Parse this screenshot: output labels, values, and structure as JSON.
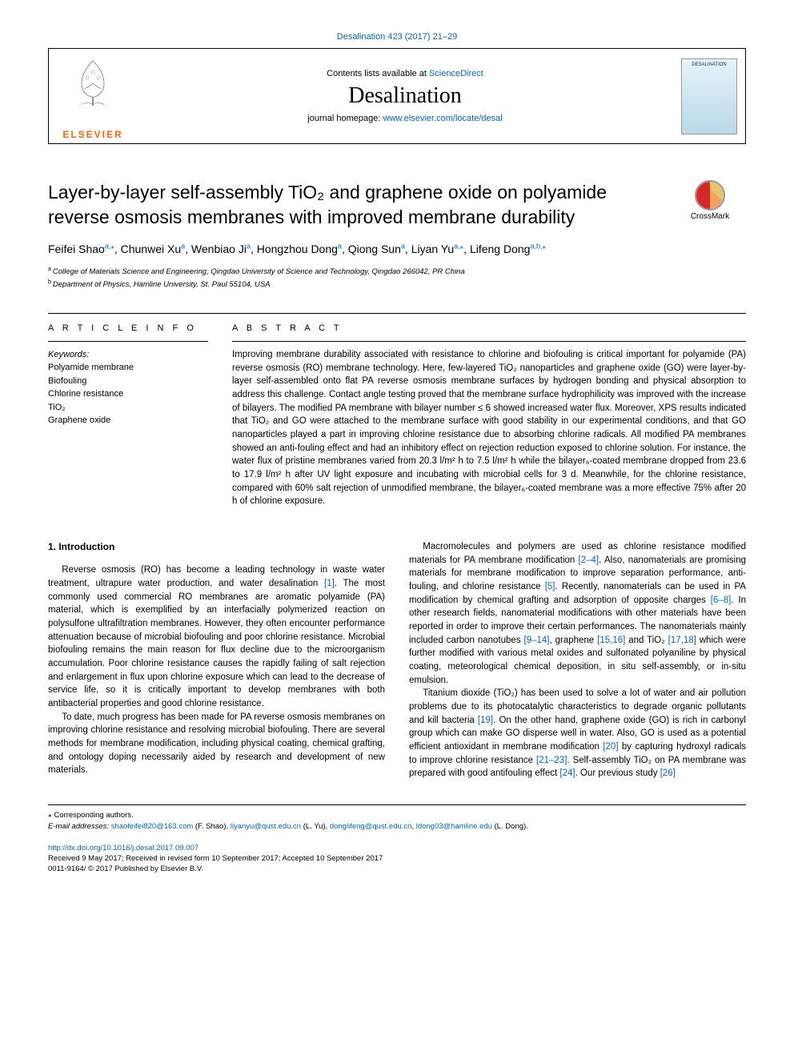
{
  "top_citation": "Desalination 423 (2017) 21–29",
  "header": {
    "contents_pre": "Contents lists available at ",
    "contents_link": "ScienceDirect",
    "journal": "Desalination",
    "homepage_pre": "journal homepage: ",
    "homepage_url": "www.elsevier.com/locate/desal",
    "publisher": "ELSEVIER",
    "cover_label": "DESALINATION"
  },
  "crossmark_label": "CrossMark",
  "title": "Layer-by-layer self-assembly TiO₂ and graphene oxide on polyamide reverse osmosis membranes with improved membrane durability",
  "authors_html": "Feifei Shao<sup>a,</sup>*, Chunwei Xu<sup>a</sup>, Wenbiao Ji<sup>a</sup>, Hongzhou Dong<sup>a</sup>, Qiong Sun<sup>a</sup>, Liyan Yu<sup>a,</sup>*, Lifeng Dong<sup>a,b,</sup>*",
  "authors": [
    {
      "name": "Feifei Shao",
      "aff": "a,",
      "corr": true
    },
    {
      "name": "Chunwei Xu",
      "aff": "a"
    },
    {
      "name": "Wenbiao Ji",
      "aff": "a"
    },
    {
      "name": "Hongzhou Dong",
      "aff": "a"
    },
    {
      "name": "Qiong Sun",
      "aff": "a"
    },
    {
      "name": "Liyan Yu",
      "aff": "a,",
      "corr": true
    },
    {
      "name": "Lifeng Dong",
      "aff": "a,b,",
      "corr": true
    }
  ],
  "affiliations": [
    {
      "label": "a",
      "text": "College of Materials Science and Engineering, Qingdao University of Science and Technology, Qingdao 266042, PR China"
    },
    {
      "label": "b",
      "text": "Department of Physics, Hamline University, St. Paul 55104, USA"
    }
  ],
  "article_info_label": "A R T I C L E  I N F O",
  "abstract_label": "A B S T R A C T",
  "keywords_label": "Keywords:",
  "keywords": [
    "Polyamide membrane",
    "Biofouling",
    "Chlorine resistance",
    "TiO₂",
    "Graphene oxide"
  ],
  "abstract": "Improving membrane durability associated with resistance to chlorine and biofouling is critical important for polyamide (PA) reverse osmosis (RO) membrane technology. Here, few-layered TiO₂ nanoparticles and graphene oxide (GO) were layer-by-layer self-assembled onto flat PA reverse osmosis membrane surfaces by hydrogen bonding and physical absorption to address this challenge. Contact angle testing proved that the membrane surface hydrophilicity was improved with the increase of bilayers. The modified PA membrane with bilayer number ≤ 6 showed increased water flux. Moreover, XPS results indicated that TiO₂ and GO were attached to the membrane surface with good stability in our experimental conditions, and that GO nanoparticles played a part in improving chlorine resistance due to absorbing chlorine radicals. All modified PA membranes showed an anti-fouling effect and had an inhibitory effect on rejection reduction exposed to chlorine solution. For instance, the water flux of pristine membranes varied from 20.3 l/m² h to 7.5 l/m² h while the bilayer₆-coated membrane dropped from 23.6 to 17.9 l/m² h after UV light exposure and incubating with microbial cells for 3 d. Meanwhile, for the chlorine resistance, compared with 60% salt rejection of unmodified membrane, the bilayer₆-coated membrane was a more effective 75% after 20 h of chlorine exposure.",
  "intro_heading": "1. Introduction",
  "body_left": [
    "Reverse osmosis (RO) has become a leading technology in waste water treatment, ultrapure water production, and water desalination [1]. The most commonly used commercial RO membranes are aromatic polyamide (PA) material, which is exemplified by an interfacially polymerized reaction on polysulfone ultrafiltration membranes. However, they often encounter performance attenuation because of microbial biofouling and poor chlorine resistance. Microbial biofouling remains the main reason for flux decline due to the microorganism accumulation. Poor chlorine resistance causes the rapidly failing of salt rejection and enlargement in flux upon chlorine exposure which can lead to the decrease of service life, so it is critically important to develop membranes with both antibacterial properties and good chlorine resistance.",
    "To date, much progress has been made for PA reverse osmosis membranes on improving chlorine resistance and resolving microbial biofouling. There are several methods for membrane modification, including physical coating, chemical grafting, and ontology doping necessarily aided by research and development of new materials."
  ],
  "body_right": [
    "Macromolecules and polymers are used as chlorine resistance modified materials for PA membrane modification [2–4]. Also, nanomaterials are promising materials for membrane modification to improve separation performance, anti-fouling, and chlorine resistance [5]. Recently, nanomaterials can be used in PA modification by chemical grafting and adsorption of opposite charges [6–8]. In other research fields, nanomaterial modifications with other materials have been reported in order to improve their certain performances. The nanomaterials mainly included carbon nanotubes [9–14], graphene [15,16] and TiO₂ [17,18] which were further modified with various metal oxides and sulfonated polyaniline by physical coating, meteorological chemical deposition, in situ self-assembly, or in-situ emulsion.",
    "Titanium dioxide (TiO₂) has been used to solve a lot of water and air pollution problems due to its photocatalytic characteristics to degrade organic pollutants and kill bacteria [19]. On the other hand, graphene oxide (GO) is rich in carbonyl group which can make GO disperse well in water. Also, GO is used as a potential efficient antioxidant in membrane modification [20] by capturing hydroxyl radicals to improve chlorine resistance [21–23]. Self-assembly TiO₂ on PA membrane was prepared with good antifouling effect [24]. Our previous study [26]"
  ],
  "refs_in_text": {
    "r1": "[1]",
    "r24": "[2–4]",
    "r5": "[5]",
    "r68": "[6–8]",
    "r914": "[9–14]",
    "r1516": "[15,16]",
    "r1718": "[17,18]",
    "r19": "[19]",
    "r20": "[20]",
    "r2123": "[21–23]",
    "r24b": "[24]",
    "r26": "[26]"
  },
  "footer": {
    "corr_label": "⁎ Corresponding authors.",
    "email_label": "E-mail addresses: ",
    "emails": [
      {
        "addr": "shaofeifei820@163.com",
        "who": "(F. Shao)"
      },
      {
        "addr": "liyanyu@qust.edu.cn",
        "who": "(L. Yu)"
      },
      {
        "addr": "donglifeng@qust.edu.cn",
        "who": ""
      },
      {
        "addr": "ldong03@hamline.edu",
        "who": "(L. Dong)"
      }
    ],
    "doi": "http://dx.doi.org/10.1016/j.desal.2017.09.007",
    "received": "Received 9 May 2017; Received in revised form 10 September 2017; Accepted 10 September 2017",
    "issn": "0011-9164/ © 2017 Published by Elsevier B.V."
  },
  "colors": {
    "link": "#0066cc",
    "elsevier": "#ff6600",
    "text": "#000000"
  }
}
